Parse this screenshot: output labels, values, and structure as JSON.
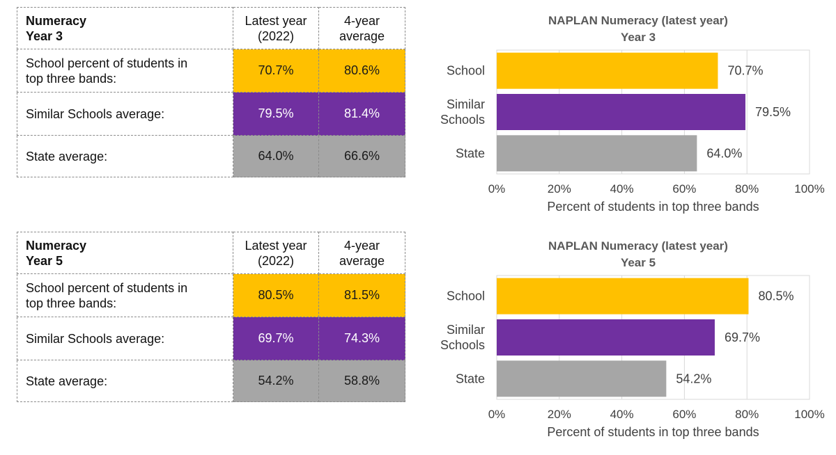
{
  "colors": {
    "school": "#FFC000",
    "similar": "#7030A0",
    "state": "#A6A6A6"
  },
  "tables": [
    {
      "title_line1": "Numeracy",
      "title_line2": "Year 3",
      "col1_line1": "Latest year",
      "col1_line2": "(2022)",
      "col2_line1": "4-year",
      "col2_line2": "average",
      "rows": [
        {
          "label_line1": "School percent of students in",
          "label_line2": "top three bands:",
          "latest": "70.7%",
          "average": "80.6%"
        },
        {
          "label_line1": "Similar Schools average:",
          "label_line2": "",
          "latest": "79.5%",
          "average": "81.4%"
        },
        {
          "label_line1": "State average:",
          "label_line2": "",
          "latest": "64.0%",
          "average": "66.6%"
        }
      ]
    },
    {
      "title_line1": "Numeracy",
      "title_line2": "Year 5",
      "col1_line1": "Latest year",
      "col1_line2": "(2022)",
      "col2_line1": "4-year",
      "col2_line2": "average",
      "rows": [
        {
          "label_line1": "School percent of students in",
          "label_line2": "top three bands:",
          "latest": "80.5%",
          "average": "81.5%"
        },
        {
          "label_line1": "Similar Schools average:",
          "label_line2": "",
          "latest": "69.7%",
          "average": "74.3%"
        },
        {
          "label_line1": "State average:",
          "label_line2": "",
          "latest": "54.2%",
          "average": "58.8%"
        }
      ]
    }
  ],
  "chart_data": [
    {
      "type": "bar",
      "orientation": "horizontal",
      "title": "NAPLAN Numeracy (latest year)",
      "subtitle": "Year 3",
      "categories": [
        [
          "School"
        ],
        [
          "Similar",
          "Schools"
        ],
        [
          "State"
        ]
      ],
      "values": [
        70.7,
        79.5,
        64.0
      ],
      "value_labels": [
        "70.7%",
        "79.5%",
        "64.0%"
      ],
      "xlabel": "Percent of students in top three bands",
      "xlim": [
        0,
        100
      ],
      "xticks": [
        "0%",
        "20%",
        "40%",
        "60%",
        "80%",
        "100%"
      ],
      "grid": true
    },
    {
      "type": "bar",
      "orientation": "horizontal",
      "title": "NAPLAN Numeracy (latest year)",
      "subtitle": "Year 5",
      "categories": [
        [
          "School"
        ],
        [
          "Similar",
          "Schools"
        ],
        [
          "State"
        ]
      ],
      "values": [
        80.5,
        69.7,
        54.2
      ],
      "value_labels": [
        "80.5%",
        "69.7%",
        "54.2%"
      ],
      "xlabel": "Percent of students in top three bands",
      "xlim": [
        0,
        100
      ],
      "xticks": [
        "0%",
        "20%",
        "40%",
        "60%",
        "80%",
        "100%"
      ],
      "grid": true
    }
  ]
}
